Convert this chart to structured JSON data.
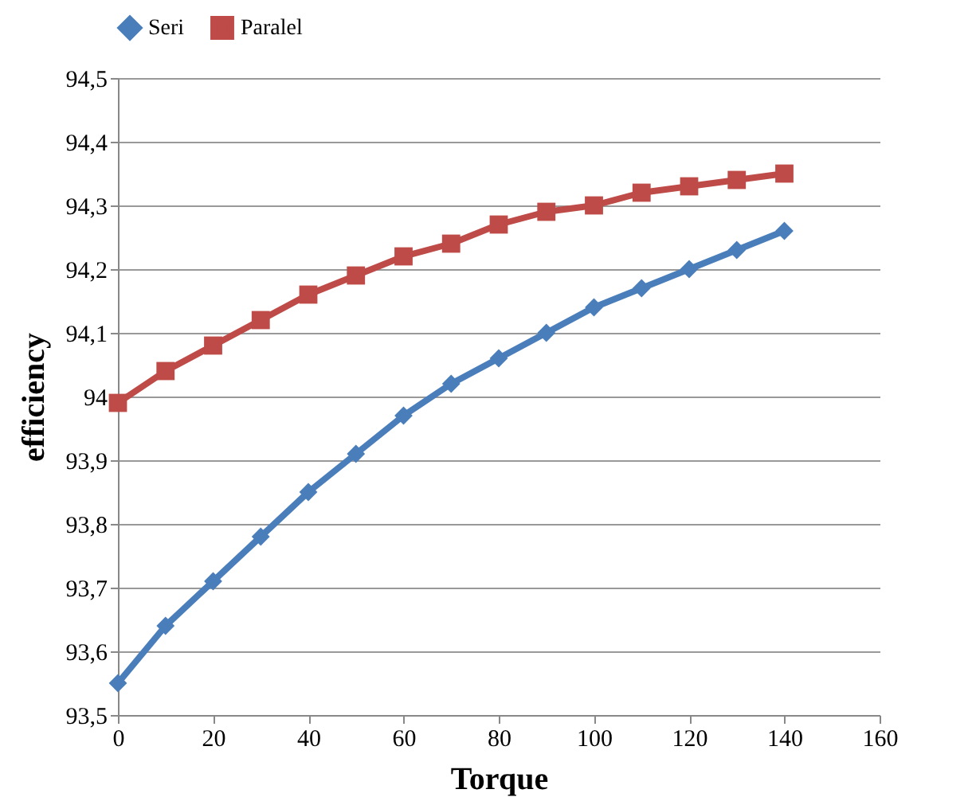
{
  "chart_data": {
    "type": "line",
    "xlabel": "Torque",
    "ylabel": "efficiency",
    "x": [
      0,
      10,
      20,
      30,
      40,
      50,
      60,
      70,
      80,
      90,
      100,
      110,
      120,
      130,
      140
    ],
    "series": [
      {
        "name": "Seri",
        "color": "#4a7ebb",
        "marker": "diamond",
        "values": [
          93.55,
          93.64,
          93.71,
          93.78,
          93.85,
          93.91,
          93.97,
          94.02,
          94.06,
          94.1,
          94.14,
          94.17,
          94.2,
          94.23,
          94.26
        ]
      },
      {
        "name": "Paralel",
        "color": "#be4b48",
        "marker": "square",
        "values": [
          93.99,
          94.04,
          94.08,
          94.12,
          94.16,
          94.19,
          94.22,
          94.24,
          94.27,
          94.29,
          94.3,
          94.32,
          94.33,
          94.34,
          94.35
        ]
      }
    ],
    "xlim": [
      0,
      160
    ],
    "xticks": [
      0,
      20,
      40,
      60,
      80,
      100,
      120,
      140,
      160
    ],
    "ylim": [
      93.5,
      94.5
    ],
    "yticks": [
      {
        "value": 93.5,
        "label": "93,5"
      },
      {
        "value": 93.6,
        "label": "93,6"
      },
      {
        "value": 93.7,
        "label": "93,7"
      },
      {
        "value": 93.8,
        "label": "93,8"
      },
      {
        "value": 93.9,
        "label": "93,9"
      },
      {
        "value": 94,
        "label": "94"
      },
      {
        "value": 94.1,
        "label": "94,1"
      },
      {
        "value": 94.2,
        "label": "94,2"
      },
      {
        "value": 94.3,
        "label": "94,3"
      },
      {
        "value": 94.4,
        "label": "94,4"
      },
      {
        "value": 94.5,
        "label": "94,5"
      }
    ],
    "grid": "y",
    "legend": "top",
    "line_style": "solid"
  }
}
